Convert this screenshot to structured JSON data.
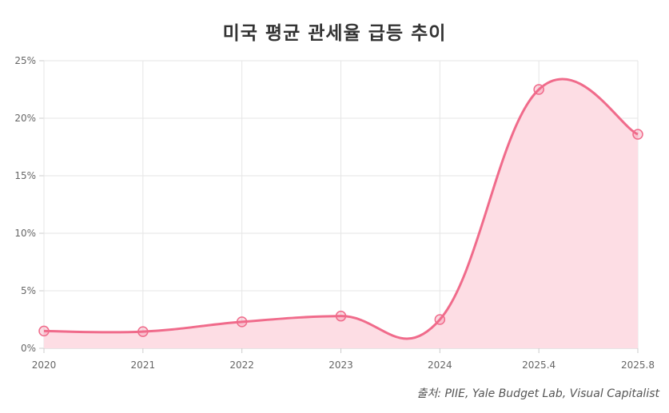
{
  "chart_data": {
    "type": "area",
    "title": "미국 평균 관세율 급등 추이",
    "xlabel": "",
    "ylabel": "",
    "categories": [
      "2020",
      "2021",
      "2022",
      "2023",
      "2024",
      "2025.4",
      "2025.8"
    ],
    "series": [
      {
        "values": [
          1.5,
          1.45,
          2.3,
          2.8,
          2.5,
          22.5,
          18.6
        ]
      }
    ],
    "ylim": [
      0,
      25
    ],
    "yticks": [
      "0%",
      "5%",
      "10%",
      "15%",
      "20%",
      "25%"
    ],
    "grid": true,
    "line_color": "#f06b8b",
    "fill_color": "#fddde4",
    "source": "출처: PIIE, Yale Budget Lab, Visual Capitalist"
  }
}
